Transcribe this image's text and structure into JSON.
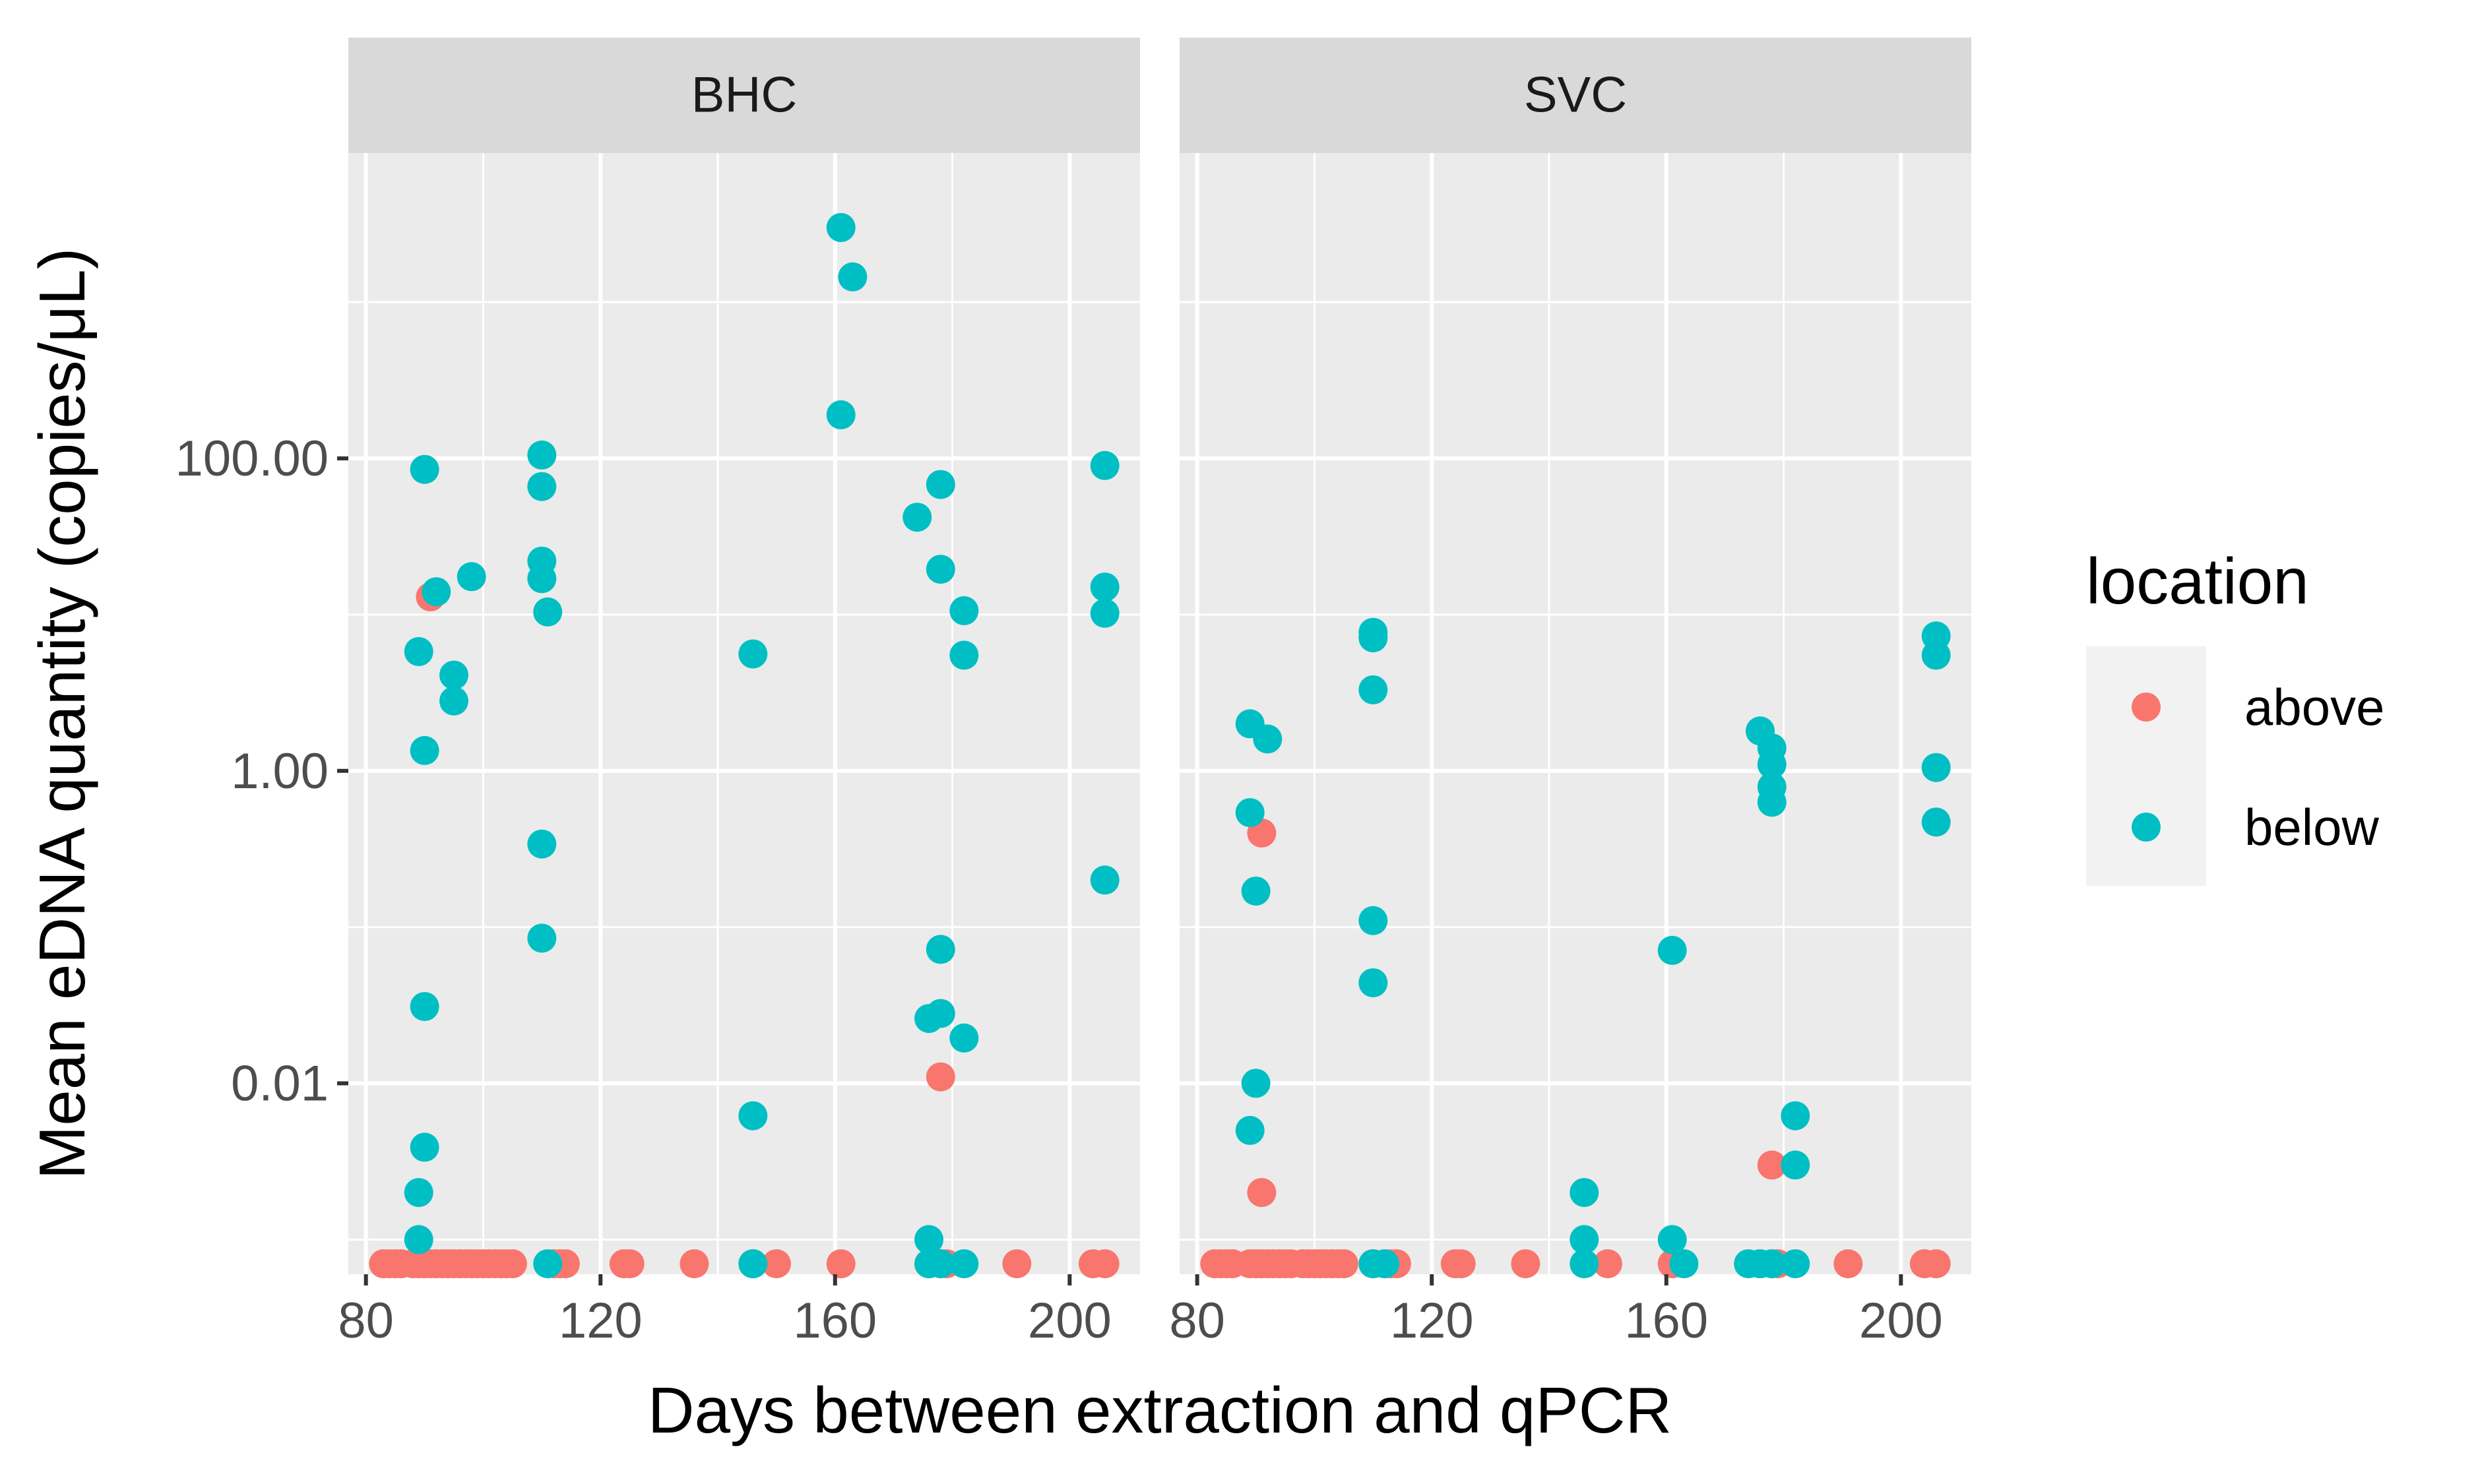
{
  "chart_data": {
    "type": "scatter",
    "xlabel": "Days between extraction and qPCR",
    "ylabel": "Mean eDNA quantity (copies/μL)",
    "x_scale": "linear",
    "y_scale": "log10",
    "xlim": [
      77,
      212
    ],
    "ylim": [
      0.0006,
      9000
    ],
    "x_ticks": [
      {
        "value": 80,
        "label": "80"
      },
      {
        "value": 120,
        "label": "120"
      },
      {
        "value": 160,
        "label": "160"
      },
      {
        "value": 200,
        "label": "200"
      }
    ],
    "y_ticks": [
      {
        "value": 0.01,
        "label": "0.01"
      },
      {
        "value": 1,
        "label": "1.00"
      },
      {
        "value": 100,
        "label": "100.00"
      }
    ],
    "grid": true,
    "legend": {
      "title": "location",
      "placement": "right",
      "entries": [
        {
          "label": "above",
          "color": "#F8766D"
        },
        {
          "label": "below",
          "color": "#00BFC4"
        }
      ]
    },
    "colors": {
      "above": "#F8766D",
      "below": "#00BFC4"
    },
    "panels": [
      {
        "name": "BHC",
        "series": [
          {
            "name": "above",
            "points": [
              [
                83,
                0.0007
              ],
              [
                84,
                0.0007
              ],
              [
                85,
                0.0007
              ],
              [
                86,
                0.0007
              ],
              [
                88,
                0.0007
              ],
              [
                89,
                0.0007
              ],
              [
                90,
                0.0007
              ],
              [
                91,
                0.0007
              ],
              [
                92,
                0.0007
              ],
              [
                93,
                0.0007
              ],
              [
                94,
                0.0007
              ],
              [
                95,
                0.0007
              ],
              [
                96,
                0.0007
              ],
              [
                97,
                0.0007
              ],
              [
                98,
                0.0007
              ],
              [
                99,
                0.0007
              ],
              [
                100,
                0.0007
              ],
              [
                101,
                0.0007
              ],
              [
                102,
                0.0007
              ],
              [
                103,
                0.0007
              ],
              [
                104,
                0.0007
              ],
              [
                105,
                0.0007
              ],
              [
                112,
                0.0007
              ],
              [
                113,
                0.0007
              ],
              [
                114,
                0.0007
              ],
              [
                124,
                0.0007
              ],
              [
                125,
                0.0007
              ],
              [
                136,
                0.0007
              ],
              [
                146,
                0.0007
              ],
              [
                150,
                0.0007
              ],
              [
                161,
                0.0007
              ],
              [
                176,
                0.0007
              ],
              [
                178,
                0.0007
              ],
              [
                179,
                0.0007
              ],
              [
                191,
                0.0007
              ],
              [
                204,
                0.0007
              ],
              [
                206,
                0.0007
              ],
              [
                91,
                13
              ],
              [
                178,
                0.011
              ]
            ]
          },
          {
            "name": "below",
            "points": [
              [
                90,
                85
              ],
              [
                89,
                5.8
              ],
              [
                95,
                4.1
              ],
              [
                95,
                2.8
              ],
              [
                90,
                1.35
              ],
              [
                98,
                17.5
              ],
              [
                92,
                14
              ],
              [
                90,
                0.031
              ],
              [
                90,
                0.0039
              ],
              [
                89,
                0.002
              ],
              [
                89,
                0.001
              ],
              [
                110,
                105
              ],
              [
                110,
                66
              ],
              [
                110,
                22
              ],
              [
                110,
                17
              ],
              [
                111,
                10.4
              ],
              [
                110,
                0.34
              ],
              [
                110,
                0.085
              ],
              [
                146,
                5.6
              ],
              [
                146,
                0.0062
              ],
              [
                161,
                3000
              ],
              [
                163,
                1450
              ],
              [
                161,
                190
              ],
              [
                174,
                42
              ],
              [
                178,
                68
              ],
              [
                178,
                19.5
              ],
              [
                182,
                10.6
              ],
              [
                182,
                5.5
              ],
              [
                178,
                0.072
              ],
              [
                178,
                0.028
              ],
              [
                176,
                0.026
              ],
              [
                182,
                0.0195
              ],
              [
                176,
                0.001
              ],
              [
                206,
                90
              ],
              [
                206,
                15
              ],
              [
                206,
                10.2
              ],
              [
                206,
                0.2
              ],
              [
                111,
                0.0007
              ],
              [
                146,
                0.0007
              ],
              [
                176,
                0.0007
              ],
              [
                178,
                0.0007
              ],
              [
                182,
                0.0007
              ]
            ]
          }
        ]
      },
      {
        "name": "SVC",
        "series": [
          {
            "name": "above",
            "points": [
              [
                83,
                0.0007
              ],
              [
                84,
                0.0007
              ],
              [
                85,
                0.0007
              ],
              [
                86,
                0.0007
              ],
              [
                89,
                0.0007
              ],
              [
                90,
                0.0007
              ],
              [
                91,
                0.0007
              ],
              [
                92,
                0.0007
              ],
              [
                93,
                0.0007
              ],
              [
                94,
                0.0007
              ],
              [
                95,
                0.0007
              ],
              [
                96,
                0.0007
              ],
              [
                98,
                0.0007
              ],
              [
                99,
                0.0007
              ],
              [
                100,
                0.0007
              ],
              [
                101,
                0.0007
              ],
              [
                102,
                0.0007
              ],
              [
                103,
                0.0007
              ],
              [
                104,
                0.0007
              ],
              [
                105,
                0.0007
              ],
              [
                110,
                0.0007
              ],
              [
                112,
                0.0007
              ],
              [
                113,
                0.0007
              ],
              [
                114,
                0.0007
              ],
              [
                124,
                0.0007
              ],
              [
                125,
                0.0007
              ],
              [
                136,
                0.0007
              ],
              [
                150,
                0.0007
              ],
              [
                161,
                0.0007
              ],
              [
                176,
                0.0007
              ],
              [
                178,
                0.0007
              ],
              [
                179,
                0.0007
              ],
              [
                191,
                0.0007
              ],
              [
                204,
                0.0007
              ],
              [
                206,
                0.0007
              ],
              [
                91,
                0.4
              ],
              [
                91,
                0.002
              ],
              [
                178,
                0.003
              ]
            ]
          },
          {
            "name": "below",
            "points": [
              [
                89,
                2
              ],
              [
                92,
                1.6
              ],
              [
                89,
                0.54
              ],
              [
                90,
                0.17
              ],
              [
                90,
                0.01
              ],
              [
                89,
                0.005
              ],
              [
                110,
                7.7
              ],
              [
                110,
                7.1
              ],
              [
                110,
                3.3
              ],
              [
                110,
                0.11
              ],
              [
                110,
                0.044
              ],
              [
                146,
                0.002
              ],
              [
                146,
                0.001
              ],
              [
                161,
                0.071
              ],
              [
                161,
                0.001
              ],
              [
                176,
                1.8
              ],
              [
                178,
                1.4
              ],
              [
                178,
                1.1
              ],
              [
                178,
                0.79
              ],
              [
                178,
                0.63
              ],
              [
                182,
                0.0062
              ],
              [
                182,
                0.003
              ],
              [
                206,
                7.3
              ],
              [
                206,
                5.5
              ],
              [
                206,
                1.05
              ],
              [
                206,
                0.47
              ],
              [
                110,
                0.0007
              ],
              [
                112,
                0.0007
              ],
              [
                146,
                0.0007
              ],
              [
                163,
                0.0007
              ],
              [
                174,
                0.0007
              ],
              [
                176,
                0.0007
              ],
              [
                178,
                0.0007
              ],
              [
                182,
                0.0007
              ]
            ]
          }
        ]
      }
    ]
  }
}
